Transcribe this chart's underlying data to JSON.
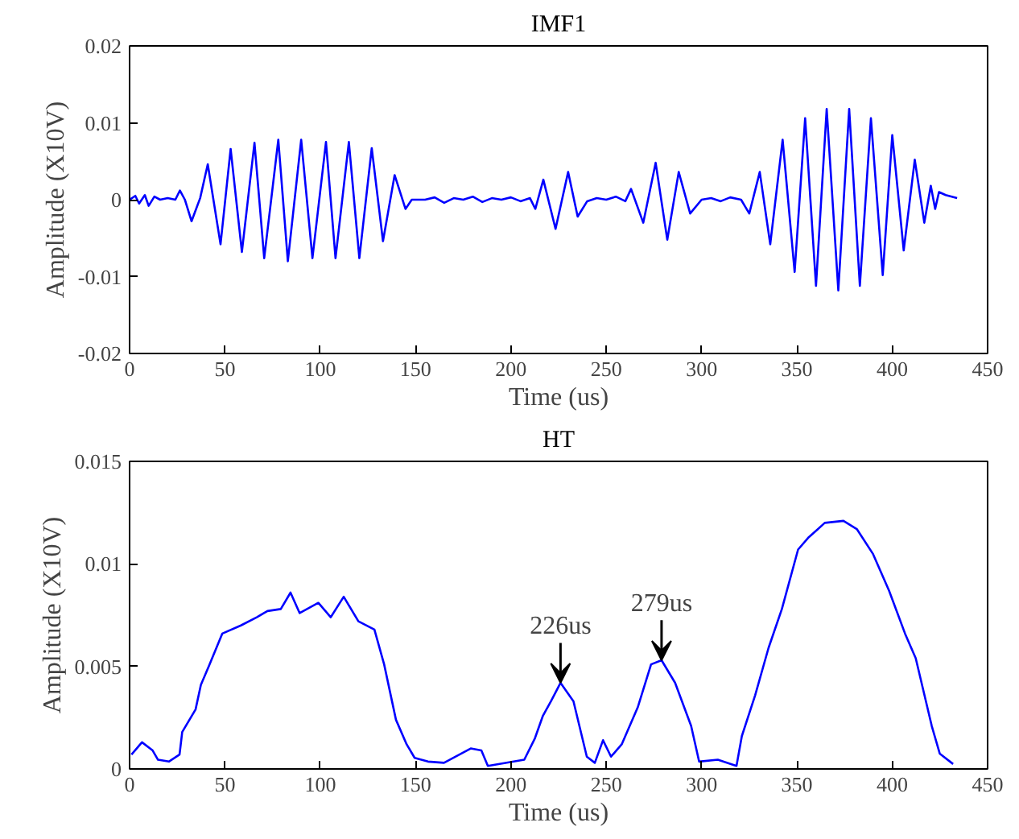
{
  "chart_data": [
    {
      "type": "line",
      "title": "IMF1",
      "xlabel": "Time (us)",
      "ylabel": "Amplitude (X10V)",
      "xlim": [
        0,
        450
      ],
      "xticks": [
        0,
        50,
        100,
        150,
        200,
        250,
        300,
        350,
        400,
        450
      ],
      "ylim": [
        -0.02,
        0.02
      ],
      "yticks": [
        -0.02,
        -0.01,
        0,
        0.01,
        0.02
      ],
      "grid": false,
      "series": [
        {
          "color": "#0000ff",
          "x": [
            0,
            3,
            5,
            8,
            10,
            13,
            16,
            20,
            24,
            26.4,
            29,
            32.5,
            37,
            41,
            47.7,
            53,
            58.9,
            65.5,
            70.6,
            78,
            83,
            90,
            95.9,
            103,
            108,
            115,
            120.5,
            127,
            132.9,
            139,
            144.7,
            148,
            155,
            160,
            165,
            170,
            175,
            180,
            185,
            190,
            195,
            200,
            205,
            210,
            212.8,
            217,
            223.4,
            230,
            235,
            240,
            245,
            250,
            255,
            260,
            263,
            269.4,
            275.9,
            282,
            288,
            294,
            300,
            305,
            310,
            315,
            320.7,
            325,
            330.5,
            336,
            342.5,
            348.8,
            354.3,
            360,
            365.6,
            371.7,
            377.4,
            383,
            388.8,
            395,
            400,
            406,
            411.8,
            416.8,
            420.2,
            422.5,
            424.5,
            428,
            434
          ],
          "values": [
            0,
            0.0005,
            -0.0005,
            0.0006,
            -0.0008,
            0.0004,
            0,
            0.0002,
            0,
            0.0012,
            0,
            -0.0028,
            0.0002,
            0.0046,
            -0.0058,
            0.0066,
            -0.0068,
            0.0074,
            -0.0076,
            0.0078,
            -0.008,
            0.0078,
            -0.0076,
            0.0075,
            -0.0076,
            0.0075,
            -0.0076,
            0.0067,
            -0.0054,
            0.0032,
            -0.0012,
            0,
            0,
            0.0003,
            -0.0004,
            0.0002,
            0,
            0.0004,
            -0.0003,
            0.0002,
            0,
            0.0003,
            -0.0002,
            0.0002,
            -0.0012,
            0.0026,
            -0.0038,
            0.0036,
            -0.0022,
            -0.0002,
            0.0002,
            0,
            0.0004,
            -0.0002,
            0.0014,
            -0.003,
            0.0048,
            -0.0052,
            0.0036,
            -0.0018,
            0,
            0.0002,
            -0.0002,
            0.0003,
            0,
            -0.0018,
            0.0036,
            -0.0058,
            0.0078,
            -0.0094,
            0.0106,
            -0.0112,
            0.0118,
            -0.0118,
            0.0118,
            -0.0112,
            0.0106,
            -0.0098,
            0.0084,
            -0.0066,
            0.0052,
            -0.003,
            0.0018,
            -0.0012,
            0.001,
            0.0006,
            0.0002
          ]
        }
      ]
    },
    {
      "type": "line",
      "title": "HT",
      "xlabel": "Time (us)",
      "ylabel": "Amplitude (X10V)",
      "xlim": [
        0,
        450
      ],
      "xticks": [
        0,
        50,
        100,
        150,
        200,
        250,
        300,
        350,
        400,
        450
      ],
      "ylim": [
        0,
        0.015
      ],
      "yticks": [
        0,
        0.005,
        0.01,
        0.015
      ],
      "grid": false,
      "annotations": [
        {
          "text": "226us",
          "x": 226,
          "y": 0.0042
        },
        {
          "text": "279us",
          "x": 279,
          "y": 0.0053
        }
      ],
      "series": [
        {
          "color": "#0000ff",
          "x": [
            1,
            6.5,
            12.1,
            14.9,
            20.6,
            26.2,
            27.6,
            34.6,
            37.4,
            41.5,
            48.6,
            58.4,
            66.7,
            72.3,
            79.3,
            84.4,
            89.2,
            99,
            105.5,
            112.3,
            120,
            128.4,
            133.5,
            139.7,
            145.3,
            149.5,
            156.5,
            164.9,
            178.9,
            184.5,
            187.9,
            207,
            212.6,
            216.8,
            221,
            226,
            232.8,
            239.8,
            244,
            248.3,
            252.5,
            258.1,
            266.5,
            273.5,
            279,
            286.1,
            294.5,
            298.7,
            308.5,
            318.3,
            321.1,
            328.1,
            335.1,
            342.1,
            350.6,
            356.2,
            364.6,
            374.4,
            381.4,
            389.8,
            398.3,
            406.7,
            412.3,
            420.7,
            424.9,
            431.9
          ],
          "values": [
            0.0007,
            0.0013,
            0.0009,
            0.00045,
            0.00036,
            0.0007,
            0.0018,
            0.0029,
            0.0041,
            0.005,
            0.0066,
            0.007,
            0.0074,
            0.0077,
            0.0078,
            0.0086,
            0.0076,
            0.0081,
            0.0074,
            0.0084,
            0.0072,
            0.0068,
            0.0051,
            0.0024,
            0.0012,
            0.00054,
            0.00036,
            0.0003,
            0.001,
            0.0009,
            0.00015,
            0.00045,
            0.0015,
            0.0026,
            0.0033,
            0.0042,
            0.0033,
            0.0006,
            0.0003,
            0.0014,
            0.0006,
            0.0012,
            0.003,
            0.0051,
            0.0053,
            0.0042,
            0.0021,
            0.00036,
            0.00045,
            0.00015,
            0.0016,
            0.0036,
            0.0059,
            0.0078,
            0.0107,
            0.0113,
            0.012,
            0.0121,
            0.0117,
            0.0105,
            0.0087,
            0.0066,
            0.0054,
            0.0021,
            0.00075,
            0.00024
          ]
        }
      ]
    }
  ]
}
